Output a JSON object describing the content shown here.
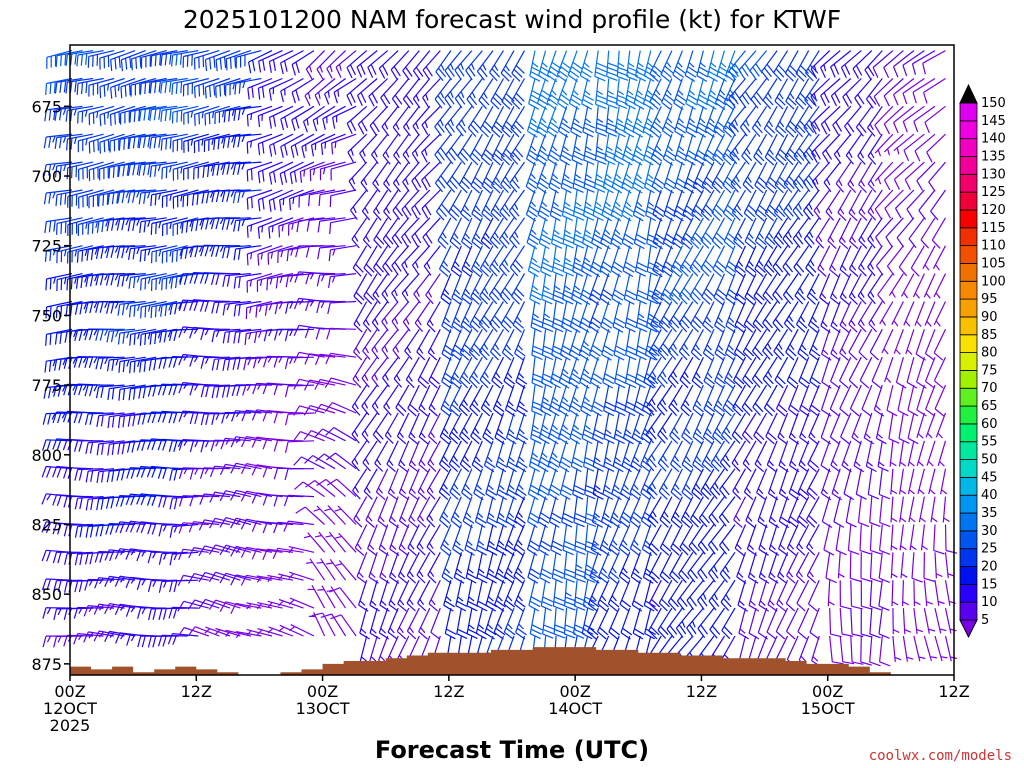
{
  "chart_data": {
    "type": "wind_barb_time_height",
    "title": "2025101200 NAM forecast wind profile (kt) for KTWF",
    "xlabel": "Forecast Time (UTC)",
    "credit": "coolwx.com/models",
    "y_axis": {
      "ticks": [
        "675",
        "700",
        "725",
        "750",
        "775",
        "800",
        "825",
        "850",
        "875"
      ],
      "range": [
        653,
        879
      ],
      "inverted": true
    },
    "x_axis": {
      "ticks": [
        {
          "hour": 0,
          "line1": "00Z",
          "line2": "12OCT",
          "line3": "2025"
        },
        {
          "hour": 12,
          "line1": "12Z",
          "line2": "",
          "line3": ""
        },
        {
          "hour": 24,
          "line1": "00Z",
          "line2": "13OCT",
          "line3": ""
        },
        {
          "hour": 36,
          "line1": "12Z",
          "line2": "",
          "line3": ""
        },
        {
          "hour": 48,
          "line1": "00Z",
          "line2": "14OCT",
          "line3": ""
        },
        {
          "hour": 60,
          "line1": "12Z",
          "line2": "",
          "line3": ""
        },
        {
          "hour": 72,
          "line1": "00Z",
          "line2": "15OCT",
          "line3": ""
        },
        {
          "hour": 84,
          "line1": "12Z",
          "line2": "",
          "line3": ""
        }
      ],
      "range": [
        0,
        84
      ]
    },
    "colorbar": {
      "labels": [
        "5",
        "10",
        "15",
        "20",
        "25",
        "30",
        "35",
        "40",
        "45",
        "50",
        "55",
        "60",
        "65",
        "70",
        "75",
        "80",
        "85",
        "90",
        "95",
        "100",
        "105",
        "110",
        "115",
        "120",
        "125",
        "130",
        "135",
        "140",
        "145",
        "150"
      ],
      "colors": [
        "#7a00e6",
        "#5a00f0",
        "#2a00ff",
        "#0010f0",
        "#0035f0",
        "#0055f0",
        "#0075f0",
        "#0095f0",
        "#00b8e8",
        "#00d8c8",
        "#00e8a0",
        "#00f070",
        "#20f040",
        "#60f020",
        "#a0f000",
        "#d8f000",
        "#f8e000",
        "#f8c000",
        "#f8a000",
        "#f88800",
        "#f07000",
        "#f05000",
        "#f03000",
        "#f80000",
        "#f0003a",
        "#f0006a",
        "#f00098",
        "#f000c0",
        "#f000e0",
        "#e000f0"
      ]
    },
    "terrain": {
      "color": "#a0522d",
      "surface_hpa": [
        [
          0,
          876
        ],
        [
          2,
          877
        ],
        [
          4,
          876
        ],
        [
          6,
          878
        ],
        [
          8,
          877
        ],
        [
          10,
          876
        ],
        [
          12,
          877
        ],
        [
          14,
          878
        ],
        [
          16,
          879
        ],
        [
          18,
          879
        ],
        [
          20,
          878
        ],
        [
          22,
          877
        ],
        [
          24,
          875
        ],
        [
          26,
          874
        ],
        [
          28,
          874
        ],
        [
          30,
          873
        ],
        [
          32,
          872
        ],
        [
          34,
          871
        ],
        [
          36,
          871
        ],
        [
          38,
          871
        ],
        [
          40,
          870
        ],
        [
          42,
          870
        ],
        [
          44,
          869
        ],
        [
          46,
          869
        ],
        [
          48,
          869
        ],
        [
          50,
          870
        ],
        [
          52,
          870
        ],
        [
          54,
          871
        ],
        [
          56,
          871
        ],
        [
          58,
          872
        ],
        [
          60,
          872
        ],
        [
          62,
          873
        ],
        [
          64,
          873
        ],
        [
          66,
          873
        ],
        [
          68,
          874
        ],
        [
          70,
          875
        ],
        [
          72,
          875
        ],
        [
          74,
          876
        ],
        [
          76,
          878
        ],
        [
          78,
          879
        ],
        [
          80,
          879
        ],
        [
          82,
          879
        ],
        [
          84,
          879
        ]
      ]
    },
    "wind_profile": {
      "time_step_hours": 1,
      "levels_hpa": [
        655,
        665,
        675,
        685,
        695,
        705,
        715,
        725,
        735,
        745,
        755,
        765,
        775,
        785,
        795,
        805,
        815,
        825,
        835,
        845,
        855,
        865
      ],
      "periods": [
        {
          "from": 0,
          "to": 13,
          "dir_top": 255,
          "dir_bottom": 275,
          "spd_top": 30,
          "spd_bottom": 16
        },
        {
          "from": 13,
          "to": 19,
          "dir_top": 255,
          "dir_bottom": 285,
          "spd_top": 28,
          "spd_bottom": 8
        },
        {
          "from": 19,
          "to": 24,
          "dir_top": 240,
          "dir_bottom": 290,
          "spd_top": 20,
          "spd_bottom": 6
        },
        {
          "from": 24,
          "to": 28,
          "dir_top": 230,
          "dir_bottom": 330,
          "spd_top": 15,
          "spd_bottom": 6
        },
        {
          "from": 28,
          "to": 36,
          "dir_top": 225,
          "dir_bottom": 200,
          "spd_top": 18,
          "spd_bottom": 14
        },
        {
          "from": 36,
          "to": 44,
          "dir_top": 215,
          "dir_bottom": 195,
          "spd_top": 28,
          "spd_bottom": 24
        },
        {
          "from": 44,
          "to": 50,
          "dir_top": 195,
          "dir_bottom": 190,
          "spd_top": 36,
          "spd_bottom": 30
        },
        {
          "from": 50,
          "to": 56,
          "dir_top": 190,
          "dir_bottom": 200,
          "spd_top": 38,
          "spd_bottom": 22
        },
        {
          "from": 56,
          "to": 64,
          "dir_top": 200,
          "dir_bottom": 215,
          "spd_top": 34,
          "spd_bottom": 20
        },
        {
          "from": 64,
          "to": 72,
          "dir_top": 215,
          "dir_bottom": 200,
          "spd_top": 30,
          "spd_bottom": 12
        },
        {
          "from": 72,
          "to": 78,
          "dir_top": 225,
          "dir_bottom": 180,
          "spd_top": 18,
          "spd_bottom": 8
        },
        {
          "from": 78,
          "to": 85,
          "dir_top": 235,
          "dir_bottom": 170,
          "spd_top": 10,
          "spd_bottom": 5
        }
      ]
    }
  }
}
